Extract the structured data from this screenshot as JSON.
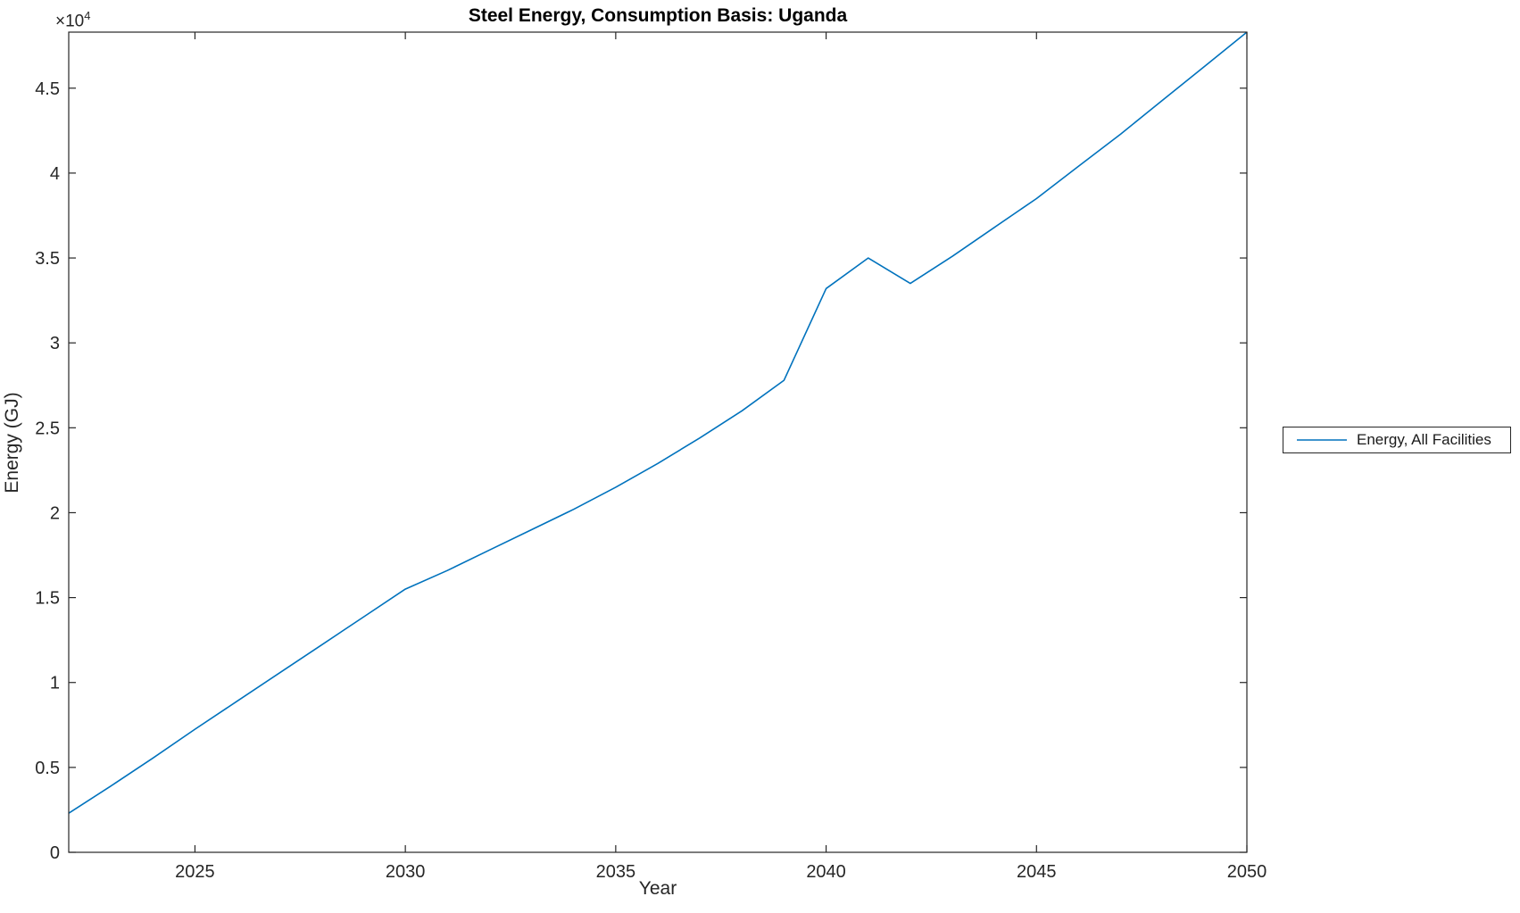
{
  "title": "Steel Energy, Consumption Basis: Uganda",
  "axes": {
    "xlabel": "Year",
    "ylabel": "Energy (GJ)",
    "y_scale_base": "×10",
    "y_scale_exp": "4"
  },
  "legend": {
    "entries": [
      {
        "label": "Energy, All Facilities",
        "color": "#0072BD"
      }
    ]
  },
  "colors": {
    "line": "#0072BD",
    "axis": "#262626",
    "tick_text": "#262626",
    "title_text": "#000000",
    "background": "#ffffff"
  },
  "chart_data": {
    "type": "line",
    "title": "Steel Energy, Consumption Basis: Uganda",
    "xlabel": "Year",
    "ylabel": "Energy (GJ)",
    "y_unit_multiplier": "1e4",
    "x": [
      2022,
      2023,
      2024,
      2025,
      2026,
      2027,
      2028,
      2029,
      2030,
      2031,
      2032,
      2033,
      2034,
      2035,
      2036,
      2037,
      2038,
      2039,
      2040,
      2041,
      2042,
      2043,
      2044,
      2045,
      2046,
      2047,
      2048,
      2049,
      2050
    ],
    "series": [
      {
        "name": "Energy, All Facilities",
        "color": "#0072BD",
        "values": [
          2300,
          3900,
          5550,
          7250,
          8900,
          10550,
          12200,
          13850,
          15500,
          16600,
          17800,
          19000,
          20200,
          21500,
          22900,
          24400,
          26000,
          27800,
          33200,
          35000,
          33500,
          35100,
          36800,
          38500,
          40400,
          42300,
          44300,
          46300,
          48300
        ]
      }
    ],
    "xlim": [
      2022,
      2050
    ],
    "ylim": [
      0,
      48300
    ],
    "xticks": [
      2025,
      2030,
      2035,
      2040,
      2045,
      2050
    ],
    "xtick_labels": [
      "2025",
      "2030",
      "2035",
      "2040",
      "2045",
      "2050"
    ],
    "yticks": [
      0,
      5000,
      10000,
      15000,
      20000,
      25000,
      30000,
      35000,
      40000,
      45000
    ],
    "ytick_labels": [
      "0",
      "0.5",
      "1",
      "1.5",
      "2",
      "2.5",
      "3",
      "3.5",
      "4",
      "4.5"
    ],
    "grid": false,
    "legend_position": "right-outside"
  }
}
